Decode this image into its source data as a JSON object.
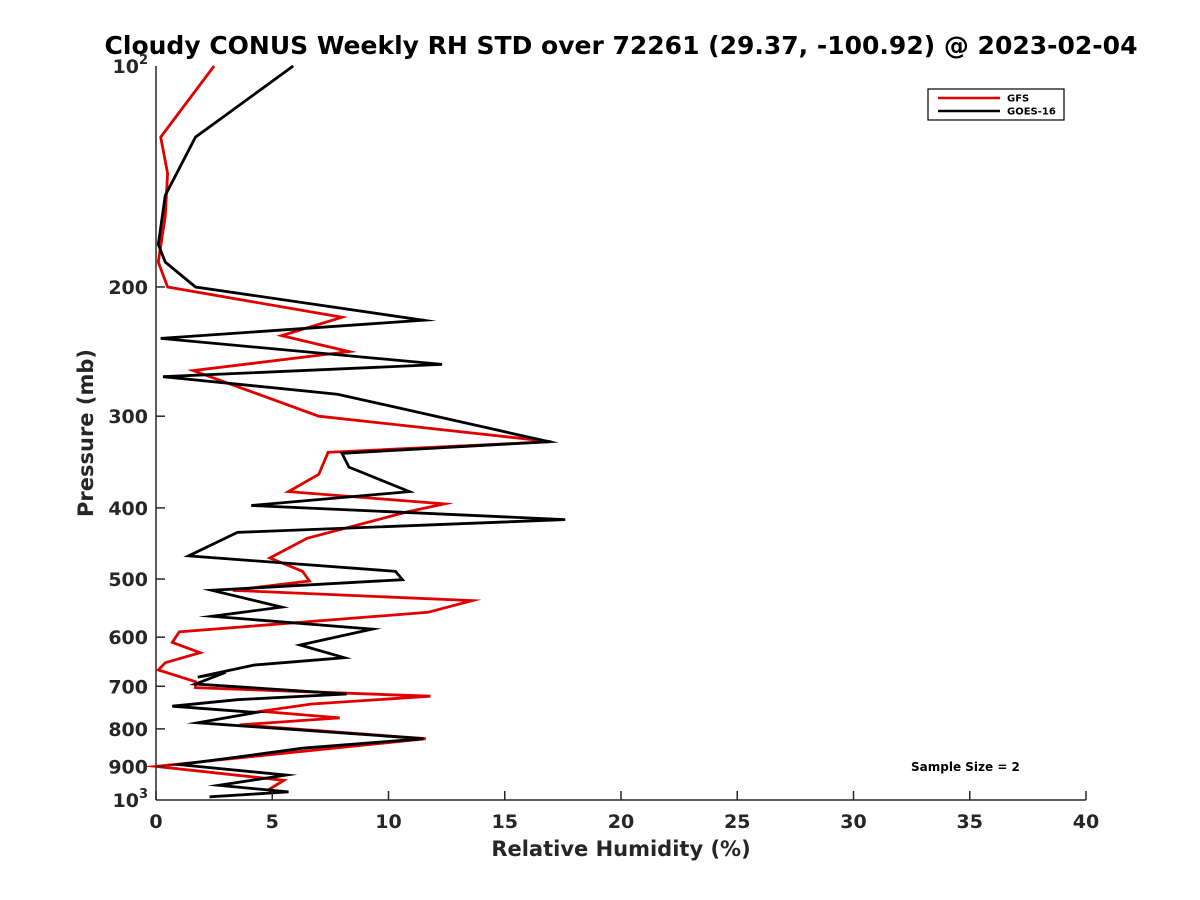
{
  "chart_data": {
    "type": "line",
    "title": "Cloudy CONUS Weekly RH STD over 72261 (29.37, -100.92) @ 2023-02-04",
    "xlabel": "Relative Humidity (%)",
    "ylabel": "Pressure (mb)",
    "xlim": [
      0,
      40
    ],
    "ylim": [
      100,
      1000
    ],
    "y_scale": "log",
    "y_reversed": true,
    "grid": false,
    "legend_position": "top-right",
    "x_ticks": [
      {
        "value": 0,
        "label": "0"
      },
      {
        "value": 5,
        "label": "5"
      },
      {
        "value": 10,
        "label": "10"
      },
      {
        "value": 15,
        "label": "15"
      },
      {
        "value": 20,
        "label": "20"
      },
      {
        "value": 25,
        "label": "25"
      },
      {
        "value": 30,
        "label": "30"
      },
      {
        "value": 35,
        "label": "35"
      },
      {
        "value": 40,
        "label": "40"
      }
    ],
    "y_ticks": [
      {
        "value": 100,
        "base": "10",
        "exp": "2"
      },
      {
        "value": 200,
        "base": "200",
        "exp": ""
      },
      {
        "value": 300,
        "base": "300",
        "exp": ""
      },
      {
        "value": 400,
        "base": "400",
        "exp": ""
      },
      {
        "value": 500,
        "base": "500",
        "exp": ""
      },
      {
        "value": 600,
        "base": "600",
        "exp": ""
      },
      {
        "value": 700,
        "base": "700",
        "exp": ""
      },
      {
        "value": 800,
        "base": "800",
        "exp": ""
      },
      {
        "value": 900,
        "base": "900",
        "exp": ""
      },
      {
        "value": 1000,
        "base": "10",
        "exp": "3"
      }
    ],
    "series": [
      {
        "name": "GFS",
        "color": "#e00000",
        "rh": [
          2.5,
          0.2,
          0.5,
          0.4,
          0.1,
          0.5,
          8.0,
          5.4,
          8.3,
          1.6,
          7.0,
          17.0,
          7.4,
          7.0,
          5.7,
          12.4,
          10.8,
          6.5,
          4.9,
          6.3,
          6.6,
          3.3,
          13.6,
          11.7,
          1.0,
          0.7,
          1.9,
          0.4,
          0.1,
          1.7,
          1.7,
          11.8,
          6.7,
          4.5,
          7.9,
          3.6,
          11.6,
          0.0,
          5.5,
          4.8
        ],
        "pressure": [
          100,
          125,
          140,
          160,
          185,
          200,
          220,
          233,
          245,
          260,
          300,
          325,
          336,
          360,
          380,
          395,
          405,
          440,
          468,
          488,
          503,
          518,
          535,
          555,
          590,
          610,
          630,
          650,
          665,
          690,
          703,
          722,
          740,
          757,
          773,
          790,
          825,
          900,
          940,
          970
        ]
      },
      {
        "name": "GOES-16",
        "color": "#000000",
        "rh": [
          5.9,
          1.7,
          0.4,
          0.1,
          0.4,
          1.7,
          11.5,
          0.2,
          12.3,
          0.3,
          7.8,
          16.9,
          8.0,
          8.3,
          10.9,
          4.1,
          17.6,
          3.5,
          1.4,
          10.3,
          10.6,
          2.4,
          5.4,
          2.4,
          9.3,
          6.2,
          8.1,
          4.2,
          1.8,
          3.0,
          1.7,
          8.2,
          3.5,
          0.7,
          4.3,
          1.8,
          11.5,
          6.3,
          3.4,
          1.0,
          5.6,
          2.7,
          5.7,
          2.3
        ],
        "pressure": [
          100,
          125,
          150,
          175,
          185,
          200,
          222,
          235,
          255,
          265,
          280,
          325,
          337,
          352,
          380,
          397,
          415,
          432,
          465,
          488,
          501,
          518,
          546,
          562,
          585,
          615,
          640,
          655,
          680,
          670,
          695,
          717,
          730,
          745,
          760,
          785,
          825,
          850,
          875,
          895,
          925,
          955,
          975,
          990
        ]
      }
    ],
    "annotations": [
      {
        "text": "Sample Size = 2"
      }
    ]
  }
}
